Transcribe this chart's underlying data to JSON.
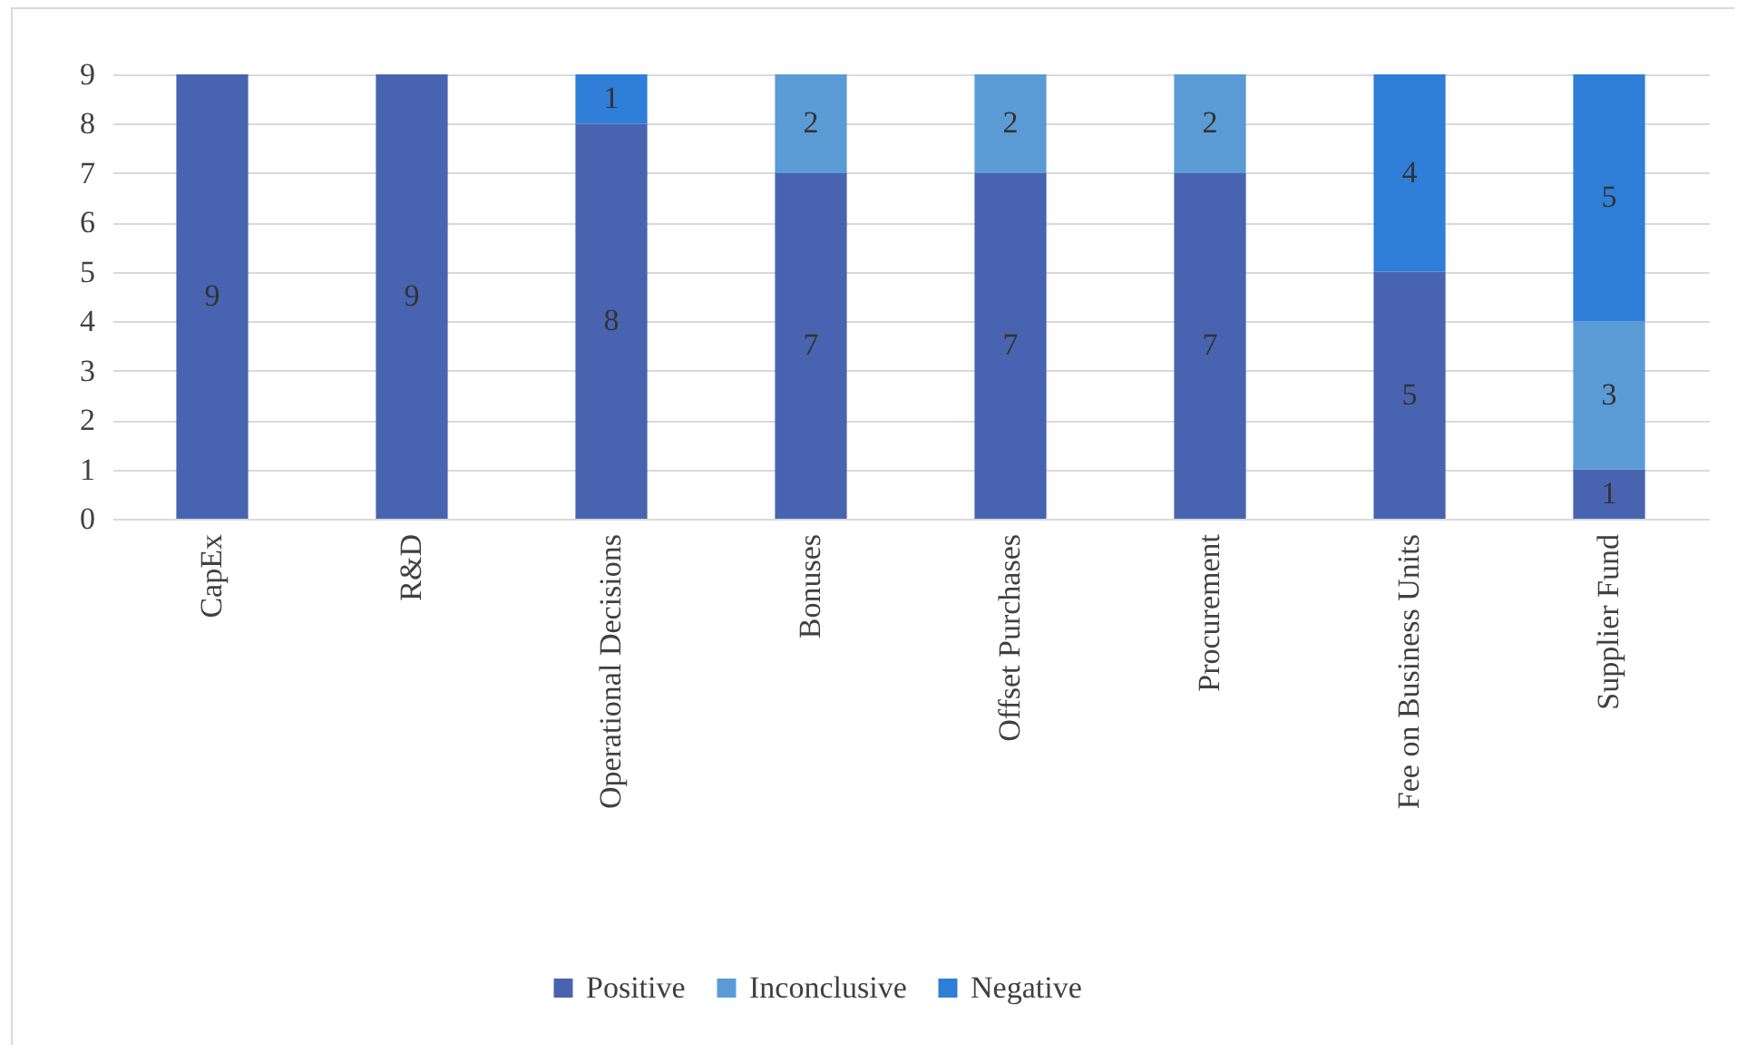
{
  "chart_data": {
    "type": "bar",
    "stacked": true,
    "categories": [
      "CapEx",
      "R&D",
      "Operational Decisions",
      "Bonuses",
      "Offset Purchases",
      "Procurement",
      "Fee on Business Units",
      "Supplier Fund"
    ],
    "series": [
      {
        "name": "Positive",
        "color": "#4864b0",
        "values": [
          9,
          9,
          8,
          7,
          7,
          7,
          5,
          1
        ]
      },
      {
        "name": "Inconclusive",
        "color": "#5b9bd5",
        "values": [
          null,
          null,
          null,
          2,
          2,
          2,
          null,
          3
        ]
      },
      {
        "name": "Negative",
        "color": "#2f7ed8",
        "values": [
          null,
          null,
          1,
          null,
          null,
          null,
          4,
          5
        ]
      }
    ],
    "ylim": [
      0,
      9
    ],
    "yticks": [
      0,
      1,
      2,
      3,
      4,
      5,
      6,
      7,
      8,
      9
    ],
    "grid": "y",
    "legend": "bottom",
    "data_labels": true
  }
}
